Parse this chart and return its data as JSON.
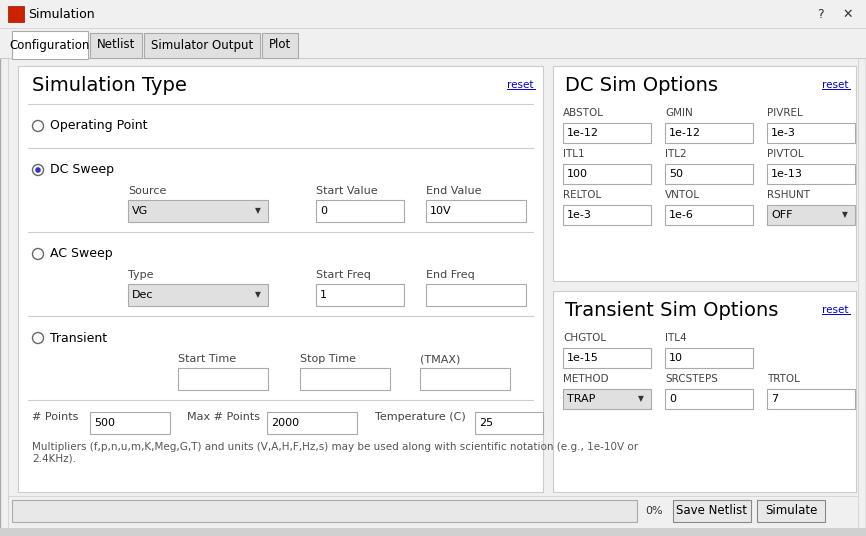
{
  "bg_color": "#f0f0f0",
  "content_bg": "#ffffff",
  "title": "Simulation",
  "tabs": [
    "Configuration",
    "Netlist",
    "Simulator Output",
    "Plot"
  ],
  "left_section_title": "Simulation Type",
  "right_section1_title": "DC Sim Options",
  "right_section2_title": "Transient Sim Options",
  "dc_cols_row1": [
    "ABSTOL",
    "GMIN",
    "PIVREL"
  ],
  "dc_vals_row1": [
    "1e-12",
    "1e-12",
    "1e-3"
  ],
  "dc_cols_row2": [
    "ITL1",
    "ITL2",
    "PIVTOL"
  ],
  "dc_vals_row2": [
    "100",
    "50",
    "1e-13"
  ],
  "dc_cols_row3": [
    "RELTOL",
    "VNTOL",
    "RSHUNT"
  ],
  "dc_vals_row3": [
    "1e-3",
    "1e-6",
    "OFF"
  ],
  "tr_cols_row1": [
    "CHGTOL",
    "ITL4"
  ],
  "tr_vals_row1": [
    "1e-15",
    "10"
  ],
  "tr_cols_row2": [
    "METHOD",
    "SRCSTEPS",
    "TRTOL"
  ],
  "tr_vals_row2": [
    "TRAP",
    "0",
    "7"
  ],
  "footer_text": "0%",
  "buttons": [
    "Save Netlist",
    "Simulate"
  ],
  "multipliers_text": "Multipliers (f,p,n,u,m,K,Meg,G,T) and units (V,A,H,F,Hz,s) may be used along with scientific notation (e.g., 1e-10V or\n2.4KHz).",
  "input_bg": "#ffffff",
  "input_border": "#aaaaaa",
  "dropdown_bg": "#e0e0e0",
  "text_color": "#000000",
  "label_color": "#444444",
  "tab_active_bg": "#ffffff",
  "tab_inactive_bg": "#e0e0e0",
  "button_bg": "#e8e8e8",
  "progress_bg": "#e8e8e8",
  "title_bar_bg": "#f0f0f0",
  "panel_bg": "#ffffff",
  "reset_color": "#0000cc",
  "sep_color": "#cccccc",
  "window_border": "#aaaaaa"
}
